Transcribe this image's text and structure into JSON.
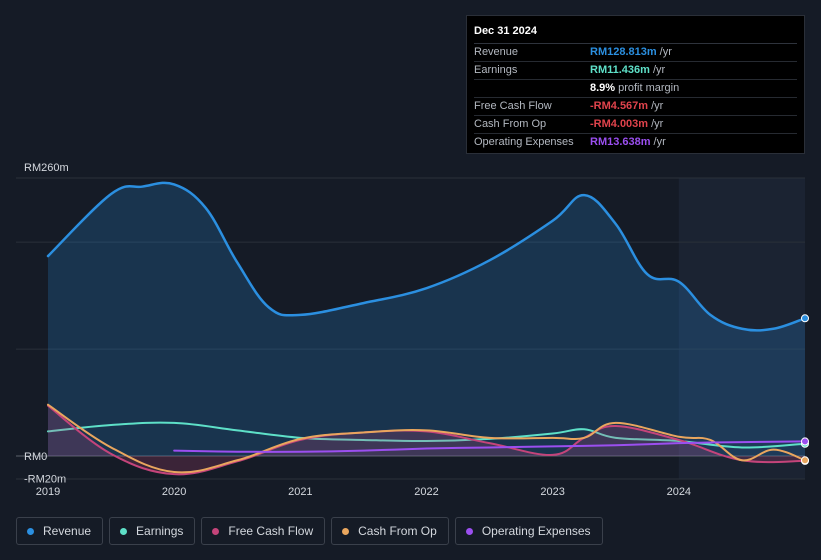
{
  "chart_data": {
    "type": "line",
    "y_ticks": [
      "RM260m",
      "RM0",
      "-RM20m"
    ],
    "ylim": [
      -20,
      260
    ],
    "x_ticks": [
      "2019",
      "2020",
      "2021",
      "2022",
      "2023",
      "2024"
    ],
    "xlim": [
      2019.0,
      2025.0
    ],
    "grid": true,
    "legend_position": "bottom",
    "forecast_shading_start": 2024.0,
    "series": [
      {
        "name": "Revenue",
        "color": "#2b8fe0",
        "fill": true,
        "x": [
          2019.0,
          2019.5,
          2019.75,
          2020.0,
          2020.25,
          2020.5,
          2020.75,
          2021.0,
          2021.5,
          2022.0,
          2022.5,
          2023.0,
          2023.25,
          2023.5,
          2023.75,
          2024.0,
          2024.25,
          2024.5,
          2024.75,
          2025.0
        ],
        "y": [
          187,
          245,
          252,
          254,
          232,
          181,
          139,
          132,
          143,
          157,
          183,
          220,
          244,
          217,
          170,
          163,
          132,
          119,
          119,
          128.813
        ]
      },
      {
        "name": "Earnings",
        "color": "#5ee0c8",
        "x": [
          2019.0,
          2019.5,
          2020.0,
          2020.5,
          2021.0,
          2021.5,
          2022.0,
          2022.5,
          2023.0,
          2023.25,
          2023.5,
          2024.0,
          2024.5,
          2025.0
        ],
        "y": [
          23,
          29,
          31,
          24,
          17,
          15,
          14,
          16,
          21,
          25,
          17,
          14,
          8,
          11.436
        ]
      },
      {
        "name": "Free Cash Flow",
        "color": "#c4447a",
        "fill": true,
        "x": [
          2019.0,
          2019.5,
          2020.0,
          2020.5,
          2021.0,
          2021.5,
          2022.0,
          2022.5,
          2023.0,
          2023.25,
          2023.5,
          2024.0,
          2024.5,
          2025.0
        ],
        "y": [
          47,
          2,
          -17,
          -5,
          15,
          22,
          23,
          12,
          1,
          17,
          28,
          15,
          -4,
          -4.567
        ]
      },
      {
        "name": "Cash From Op",
        "color": "#e9a65e",
        "x": [
          2019.0,
          2019.5,
          2020.0,
          2020.5,
          2021.0,
          2021.5,
          2022.0,
          2022.5,
          2023.0,
          2023.25,
          2023.5,
          2024.0,
          2024.25,
          2024.5,
          2024.75,
          2025.0
        ],
        "y": [
          48,
          8,
          -15,
          -4,
          16,
          22,
          24,
          17,
          17,
          17,
          31,
          18,
          15,
          -4,
          6,
          -4.003
        ]
      },
      {
        "name": "Operating Expenses",
        "color": "#9b4ff0",
        "x": [
          2020.0,
          2020.5,
          2021.0,
          2021.5,
          2022.0,
          2022.5,
          2023.0,
          2023.5,
          2024.0,
          2024.5,
          2025.0
        ],
        "y": [
          5,
          4,
          4,
          5,
          7,
          8,
          9,
          10,
          12,
          13,
          13.638
        ]
      }
    ]
  },
  "tooltip": {
    "date": "Dec 31 2024",
    "rows": [
      {
        "label": "Revenue",
        "value": "RM128.813m",
        "unit": "/yr",
        "color": "#2b8fe0"
      },
      {
        "label": "Earnings",
        "value": "RM11.436m",
        "unit": "/yr",
        "color": "#5ee0c8"
      },
      {
        "label": "",
        "value": "8.9%",
        "unit": "profit margin",
        "color": "#ffffff"
      },
      {
        "label": "Free Cash Flow",
        "value": "-RM4.567m",
        "unit": "/yr",
        "color": "#e0434c"
      },
      {
        "label": "Cash From Op",
        "value": "-RM4.003m",
        "unit": "/yr",
        "color": "#e0434c"
      },
      {
        "label": "Operating Expenses",
        "value": "RM13.638m",
        "unit": "/yr",
        "color": "#9b4ff0"
      }
    ]
  },
  "legend": [
    {
      "label": "Revenue",
      "color": "#2b8fe0"
    },
    {
      "label": "Earnings",
      "color": "#5ee0c8"
    },
    {
      "label": "Free Cash Flow",
      "color": "#c4447a"
    },
    {
      "label": "Cash From Op",
      "color": "#e9a65e"
    },
    {
      "label": "Operating Expenses",
      "color": "#9b4ff0"
    }
  ]
}
